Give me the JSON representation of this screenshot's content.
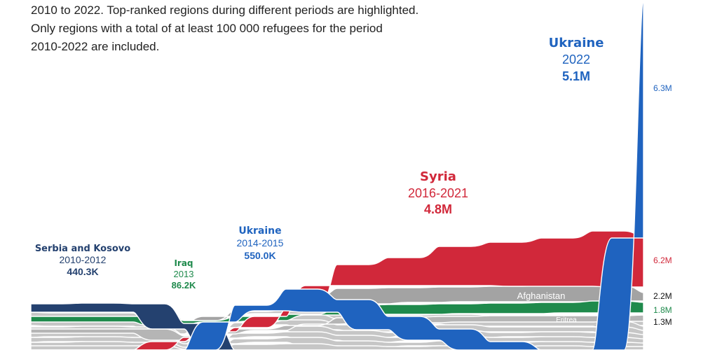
{
  "intro": [
    "2010 to 2022. Top-ranked regions during different periods are highlighted.",
    "Only regions with a total of at least 100 000 refugees for the period",
    "2010-2022 are included."
  ],
  "colors": {
    "serbia": "#24416f",
    "iraq": "#1f8a4c",
    "ukraine": "#1f63bf",
    "syria": "#d1283a",
    "afghanistan": "#a3a3a3",
    "other": "#c6c6c6",
    "eritrea": "#b5b5b5"
  },
  "chart_data": {
    "type": "area",
    "kind": "ranked stream (bump) chart",
    "x": [
      2010,
      2011,
      2012,
      2013,
      2014,
      2015,
      2016,
      2017,
      2018,
      2019,
      2020,
      2021,
      2022
    ],
    "highlights": [
      {
        "region": "Serbia and Kosovo",
        "period": "2010-2012",
        "total": "440.3K",
        "color_key": "serbia"
      },
      {
        "region": "Iraq",
        "period": "2013",
        "total": "86.2K",
        "color_key": "iraq"
      },
      {
        "region": "Ukraine",
        "period": "2014-2015",
        "total": "550.0K",
        "color_key": "ukraine"
      },
      {
        "region": "Syria",
        "period": "2016-2021",
        "total": "4.8M",
        "color_key": "syria"
      },
      {
        "region": "Ukraine",
        "period": "2022",
        "total": "5.1M",
        "color_key": "ukraine"
      }
    ],
    "stream_labels": [
      "Afghanistan",
      "Eritrea"
    ],
    "end_totals": [
      {
        "value": "6.3M",
        "color_key": "ukraine"
      },
      {
        "value": "6.2M",
        "color_key": "syria"
      },
      {
        "value": "2.2M",
        "color_key": "none"
      },
      {
        "value": "1.8M",
        "color_key": "iraq"
      },
      {
        "value": "1.3M",
        "color_key": "none"
      }
    ]
  }
}
